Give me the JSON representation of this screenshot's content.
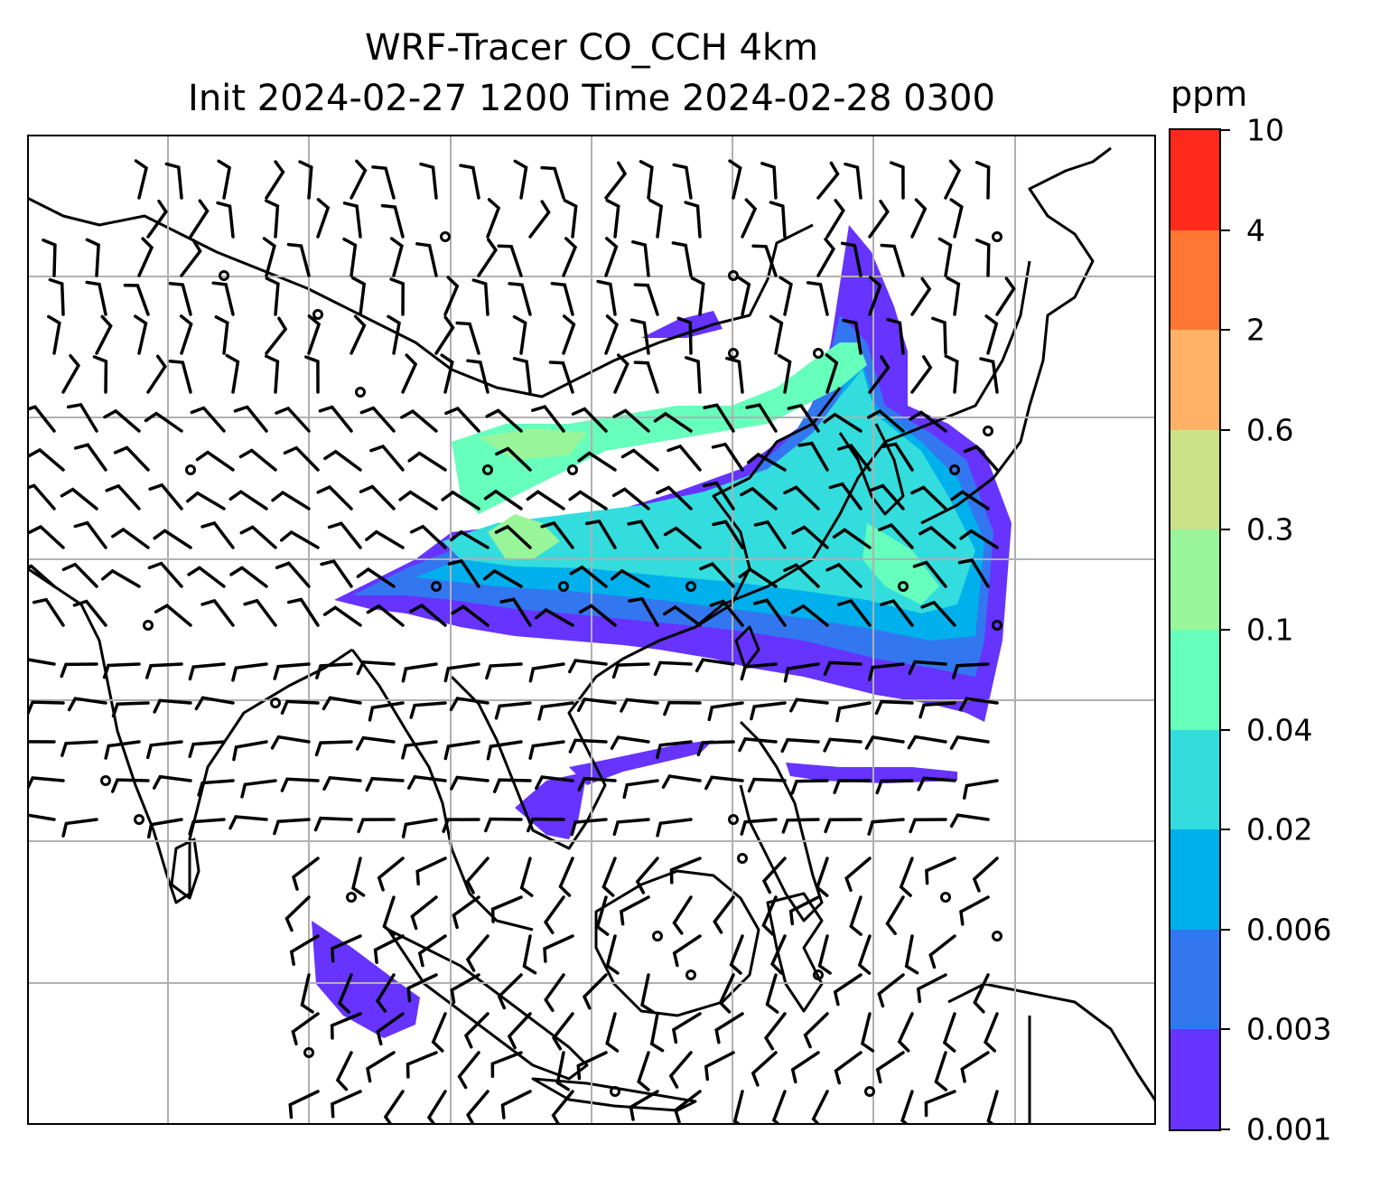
{
  "title_line1": "WRF-Tracer CO_CCH 4km",
  "title_line2": "Init 2024-02-27 1200 Time 2024-02-28 0300",
  "colorbar": {
    "unit": "ppm",
    "levels": [
      "0.001",
      "0.003",
      "0.006",
      "0.02",
      "0.04",
      "0.1",
      "0.3",
      "0.6",
      "2",
      "4",
      "10"
    ],
    "colors": [
      "#6633ff",
      "#3377f0",
      "#00b0ec",
      "#33dddd",
      "#66ffbb",
      "#99f599",
      "#cce088",
      "#ffb266",
      "#ff7733",
      "#ff2a1a"
    ]
  },
  "map": {
    "grid_lines": 7,
    "concentration_scale": "ppm",
    "wind_field": "wind barbs"
  }
}
